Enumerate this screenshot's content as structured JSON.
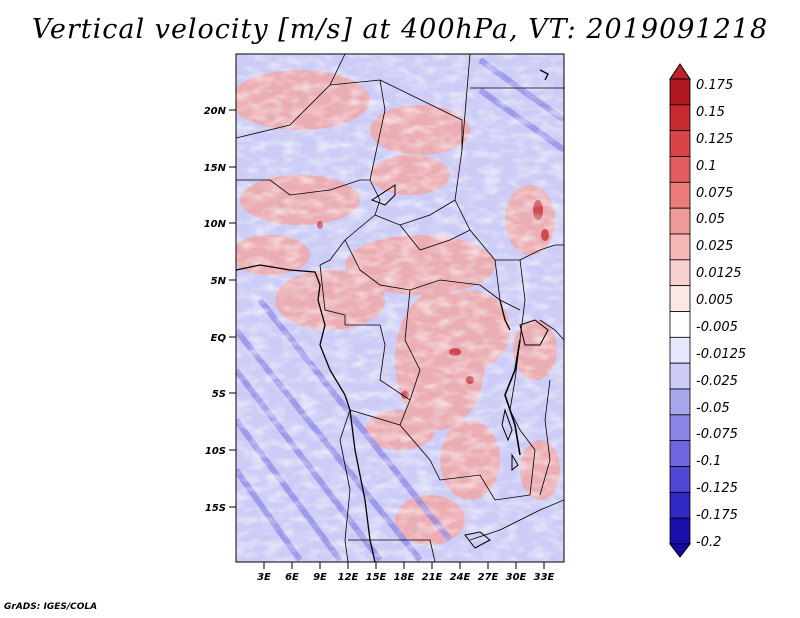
{
  "title": "Vertical velocity [m/s] at 400hPa, VT: 2019091218",
  "credit": "GrADS: IGES/COLA",
  "map": {
    "lat_labels": [
      "20N",
      "15N",
      "10N",
      "5N",
      "EQ",
      "5S",
      "10S",
      "15S"
    ],
    "lon_labels": [
      "3E",
      "6E",
      "9E",
      "12E",
      "15E",
      "18E",
      "21E",
      "24E",
      "27E",
      "30E",
      "33E"
    ]
  },
  "colorbar": {
    "labels": [
      "0.175",
      "0.15",
      "0.125",
      "0.1",
      "0.075",
      "0.05",
      "0.025",
      "0.0125",
      "0.005",
      "-0.005",
      "-0.0125",
      "-0.025",
      "-0.05",
      "-0.075",
      "-0.1",
      "-0.125",
      "-0.175",
      "-0.2"
    ],
    "colors": [
      "#b01820",
      "#c82830",
      "#d84448",
      "#e25e5e",
      "#ea7c7c",
      "#f09a9a",
      "#f5b6b6",
      "#f9d0d0",
      "#fde8e8",
      "#ffffff",
      "#e6e6fc",
      "#cccaf6",
      "#aaa6ee",
      "#8c86e6",
      "#6e66de",
      "#4e46d4",
      "#3028c4",
      "#1a10ac"
    ],
    "top_color": "#c02028",
    "bottom_color": "#1808a8"
  }
}
